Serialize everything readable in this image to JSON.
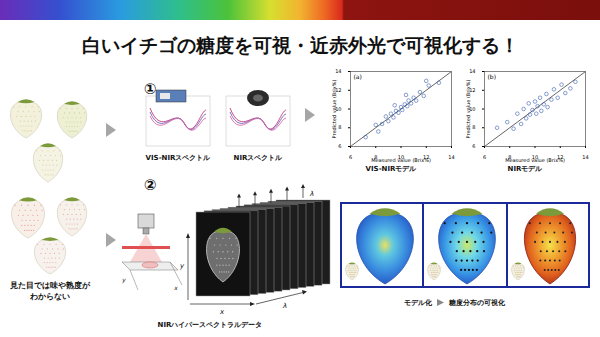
{
  "title": "白いイチゴの糖度を可視・近赤外光で可視化する！",
  "left_caption": {
    "lines": [
      "見た目では味や熟度が",
      "わからない"
    ]
  },
  "step1": {
    "number": "①",
    "spectra": [
      "VIS-NIRスペクトル",
      "NIRスペクトル"
    ],
    "models": [
      "VIS-NIRモデル",
      "NIRモデル"
    ]
  },
  "step2": {
    "number": "②",
    "data_label": "NIRハイパースペクトラルデータ",
    "cube_axes": [
      "x",
      "y",
      "λ"
    ],
    "result_labels": [
      "モデル化",
      "糖度分布の可視化"
    ]
  },
  "chart_data": [
    {
      "type": "scatter",
      "title": "(a)",
      "x_label": "Measured value (Brix%)",
      "y_label": "Predicted value (Brix%)",
      "x": [
        7.2,
        8.0,
        8.2,
        8.5,
        8.8,
        9.0,
        9.2,
        9.4,
        9.5,
        9.6,
        9.8,
        10.0,
        10.1,
        10.3,
        10.4,
        10.5,
        10.6,
        10.8,
        11.0,
        11.2,
        11.5,
        11.8,
        12.0,
        12.2,
        13.0
      ],
      "values": [
        7.0,
        8.3,
        7.6,
        8.4,
        9.2,
        8.7,
        9.5,
        9.1,
        10.4,
        9.8,
        9.6,
        10.2,
        9.9,
        10.5,
        11.5,
        10.3,
        10.9,
        10.6,
        11.2,
        10.9,
        11.8,
        11.4,
        13.0,
        12.5,
        12.8
      ],
      "xlim": [
        6,
        14
      ],
      "ylim": [
        6,
        14
      ],
      "xticks": [
        6,
        8,
        10,
        12,
        14
      ],
      "yticks": [
        6,
        8,
        10,
        12,
        14
      ],
      "color": "#3a5fb0",
      "marker": "circle"
    },
    {
      "type": "scatter",
      "title": "(b)",
      "x_label": "Measured value (Brix%)",
      "y_label": "Predicted value (Brix%)",
      "x": [
        7.0,
        7.8,
        8.3,
        8.6,
        8.9,
        9.1,
        9.3,
        9.5,
        9.6,
        9.8,
        10.0,
        10.1,
        10.2,
        10.4,
        10.5,
        10.7,
        10.9,
        11.0,
        11.3,
        11.5,
        11.8,
        12.1,
        12.4,
        12.8,
        13.2
      ],
      "values": [
        8.0,
        8.6,
        7.9,
        9.5,
        8.4,
        10.0,
        9.0,
        10.6,
        9.4,
        9.9,
        10.8,
        9.5,
        10.3,
        11.2,
        9.8,
        10.5,
        11.6,
        10.2,
        11.0,
        12.1,
        11.2,
        12.6,
        11.7,
        12.2,
        12.9
      ],
      "xlim": [
        6,
        14
      ],
      "ylim": [
        6,
        14
      ],
      "xticks": [
        6,
        8,
        10,
        12,
        14
      ],
      "yticks": [
        6,
        8,
        10,
        12,
        14
      ],
      "color": "#3a5fb0",
      "marker": "circle"
    }
  ]
}
